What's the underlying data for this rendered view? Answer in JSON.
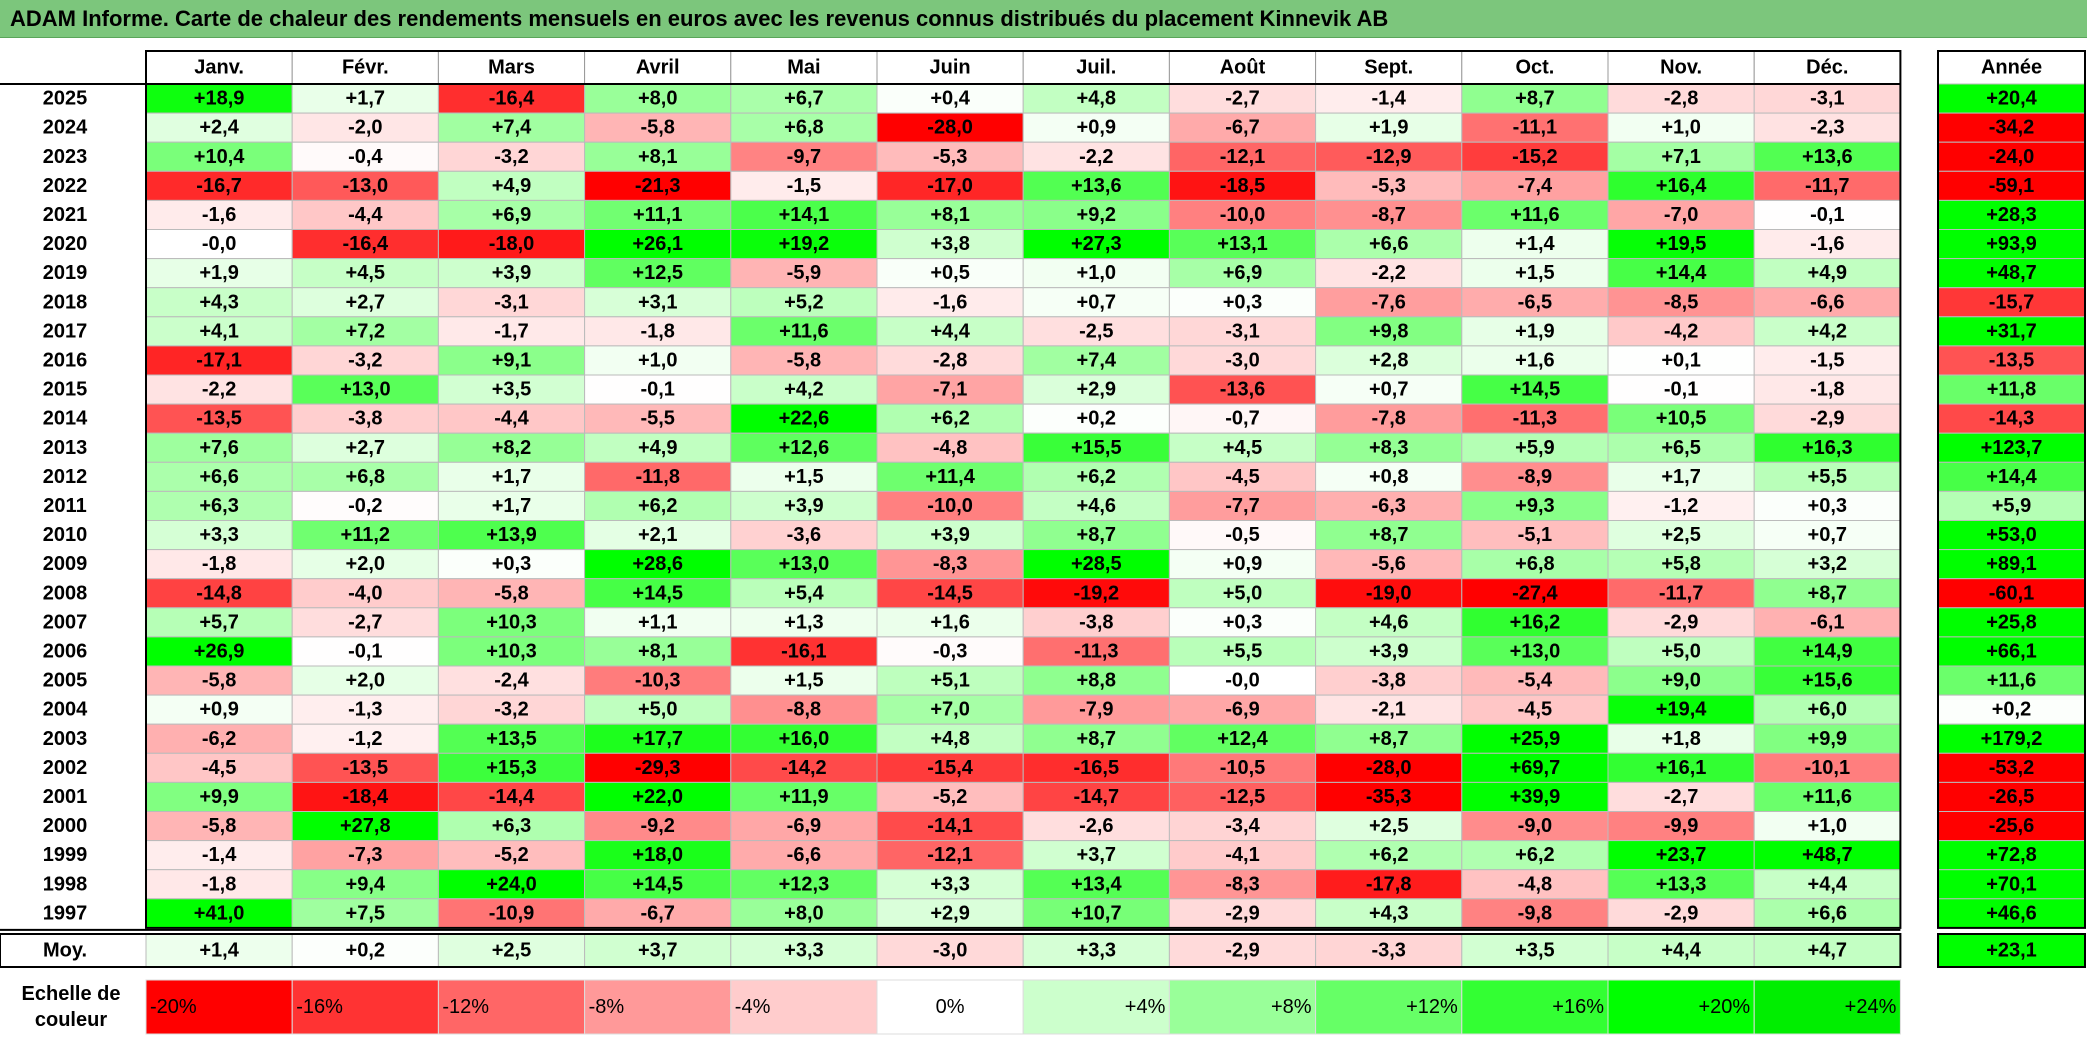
{
  "title": "ADAM Informe. Carte de chaleur des rendements mensuels en euros avec les revenus connus distribués du placement Kinnevik AB",
  "chart_data": {
    "type": "heatmap",
    "months": [
      "Janv.",
      "Févr.",
      "Mars",
      "Avril",
      "Mai",
      "Juin",
      "Juil.",
      "Août",
      "Sept.",
      "Oct.",
      "Nov.",
      "Déc."
    ],
    "year_header": "Année",
    "rows": [
      {
        "year": "2025",
        "values": [
          "+18,9",
          "+1,7",
          "-16,4",
          "+8,0",
          "+6,7",
          "+0,4",
          "+4,8",
          "-2,7",
          "-1,4",
          "+8,7",
          "-2,8",
          "-3,1"
        ],
        "annual": "+20,4"
      },
      {
        "year": "2024",
        "values": [
          "+2,4",
          "-2,0",
          "+7,4",
          "-5,8",
          "+6,8",
          "-28,0",
          "+0,9",
          "-6,7",
          "+1,9",
          "-11,1",
          "+1,0",
          "-2,3"
        ],
        "annual": "-34,2"
      },
      {
        "year": "2023",
        "values": [
          "+10,4",
          "-0,4",
          "-3,2",
          "+8,1",
          "-9,7",
          "-5,3",
          "-2,2",
          "-12,1",
          "-12,9",
          "-15,2",
          "+7,1",
          "+13,6"
        ],
        "annual": "-24,0"
      },
      {
        "year": "2022",
        "values": [
          "-16,7",
          "-13,0",
          "+4,9",
          "-21,3",
          "-1,5",
          "-17,0",
          "+13,6",
          "-18,5",
          "-5,3",
          "-7,4",
          "+16,4",
          "-11,7"
        ],
        "annual": "-59,1"
      },
      {
        "year": "2021",
        "values": [
          "-1,6",
          "-4,4",
          "+6,9",
          "+11,1",
          "+14,1",
          "+8,1",
          "+9,2",
          "-10,0",
          "-8,7",
          "+11,6",
          "-7,0",
          "-0,1"
        ],
        "annual": "+28,3"
      },
      {
        "year": "2020",
        "values": [
          "-0,0",
          "-16,4",
          "-18,0",
          "+26,1",
          "+19,2",
          "+3,8",
          "+27,3",
          "+13,1",
          "+6,6",
          "+1,4",
          "+19,5",
          "-1,6"
        ],
        "annual": "+93,9"
      },
      {
        "year": "2019",
        "values": [
          "+1,9",
          "+4,5",
          "+3,9",
          "+12,5",
          "-5,9",
          "+0,5",
          "+1,0",
          "+6,9",
          "-2,2",
          "+1,5",
          "+14,4",
          "+4,9"
        ],
        "annual": "+48,7"
      },
      {
        "year": "2018",
        "values": [
          "+4,3",
          "+2,7",
          "-3,1",
          "+3,1",
          "+5,2",
          "-1,6",
          "+0,7",
          "+0,3",
          "-7,6",
          "-6,5",
          "-8,5",
          "-6,6"
        ],
        "annual": "-15,7"
      },
      {
        "year": "2017",
        "values": [
          "+4,1",
          "+7,2",
          "-1,7",
          "-1,8",
          "+11,6",
          "+4,4",
          "-2,5",
          "-3,1",
          "+9,8",
          "+1,9",
          "-4,2",
          "+4,2"
        ],
        "annual": "+31,7"
      },
      {
        "year": "2016",
        "values": [
          "-17,1",
          "-3,2",
          "+9,1",
          "+1,0",
          "-5,8",
          "-2,8",
          "+7,4",
          "-3,0",
          "+2,8",
          "+1,6",
          "+0,1",
          "-1,5"
        ],
        "annual": "-13,5"
      },
      {
        "year": "2015",
        "values": [
          "-2,2",
          "+13,0",
          "+3,5",
          "-0,1",
          "+4,2",
          "-7,1",
          "+2,9",
          "-13,6",
          "+0,7",
          "+14,5",
          "-0,1",
          "-1,8"
        ],
        "annual": "+11,8"
      },
      {
        "year": "2014",
        "values": [
          "-13,5",
          "-3,8",
          "-4,4",
          "-5,5",
          "+22,6",
          "+6,2",
          "+0,2",
          "-0,7",
          "-7,8",
          "-11,3",
          "+10,5",
          "-2,9"
        ],
        "annual": "-14,3"
      },
      {
        "year": "2013",
        "values": [
          "+7,6",
          "+2,7",
          "+8,2",
          "+4,9",
          "+12,6",
          "-4,8",
          "+15,5",
          "+4,5",
          "+8,3",
          "+5,9",
          "+6,5",
          "+16,3"
        ],
        "annual": "+123,7"
      },
      {
        "year": "2012",
        "values": [
          "+6,6",
          "+6,8",
          "+1,7",
          "-11,8",
          "+1,5",
          "+11,4",
          "+6,2",
          "-4,5",
          "+0,8",
          "-8,9",
          "+1,7",
          "+5,5"
        ],
        "annual": "+14,4"
      },
      {
        "year": "2011",
        "values": [
          "+6,3",
          "-0,2",
          "+1,7",
          "+6,2",
          "+3,9",
          "-10,0",
          "+4,6",
          "-7,7",
          "-6,3",
          "+9,3",
          "-1,2",
          "+0,3"
        ],
        "annual": "+5,9"
      },
      {
        "year": "2010",
        "values": [
          "+3,3",
          "+11,2",
          "+13,9",
          "+2,1",
          "-3,6",
          "+3,9",
          "+8,7",
          "-0,5",
          "+8,7",
          "-5,1",
          "+2,5",
          "+0,7"
        ],
        "annual": "+53,0"
      },
      {
        "year": "2009",
        "values": [
          "-1,8",
          "+2,0",
          "+0,3",
          "+28,6",
          "+13,0",
          "-8,3",
          "+28,5",
          "+0,9",
          "-5,6",
          "+6,8",
          "+5,8",
          "+3,2"
        ],
        "annual": "+89,1"
      },
      {
        "year": "2008",
        "values": [
          "-14,8",
          "-4,0",
          "-5,8",
          "+14,5",
          "+5,4",
          "-14,5",
          "-19,2",
          "+5,0",
          "-19,0",
          "-27,4",
          "-11,7",
          "+8,7"
        ],
        "annual": "-60,1"
      },
      {
        "year": "2007",
        "values": [
          "+5,7",
          "-2,7",
          "+10,3",
          "+1,1",
          "+1,3",
          "+1,6",
          "-3,8",
          "+0,3",
          "+4,6",
          "+16,2",
          "-2,9",
          "-6,1"
        ],
        "annual": "+25,8"
      },
      {
        "year": "2006",
        "values": [
          "+26,9",
          "-0,1",
          "+10,3",
          "+8,1",
          "-16,1",
          "-0,3",
          "-11,3",
          "+5,5",
          "+3,9",
          "+13,0",
          "+5,0",
          "+14,9"
        ],
        "annual": "+66,1"
      },
      {
        "year": "2005",
        "values": [
          "-5,8",
          "+2,0",
          "-2,4",
          "-10,3",
          "+1,5",
          "+5,1",
          "+8,8",
          "-0,0",
          "-3,8",
          "-5,4",
          "+9,0",
          "+15,6"
        ],
        "annual": "+11,6"
      },
      {
        "year": "2004",
        "values": [
          "+0,9",
          "-1,3",
          "-3,2",
          "+5,0",
          "-8,8",
          "+7,0",
          "-7,9",
          "-6,9",
          "-2,1",
          "-4,5",
          "+19,4",
          "+6,0"
        ],
        "annual": "+0,2"
      },
      {
        "year": "2003",
        "values": [
          "-6,2",
          "-1,2",
          "+13,5",
          "+17,7",
          "+16,0",
          "+4,8",
          "+8,7",
          "+12,4",
          "+8,7",
          "+25,9",
          "+1,8",
          "+9,9"
        ],
        "annual": "+179,2"
      },
      {
        "year": "2002",
        "values": [
          "-4,5",
          "-13,5",
          "+15,3",
          "-29,3",
          "-14,2",
          "-15,4",
          "-16,5",
          "-10,5",
          "-28,0",
          "+69,7",
          "+16,1",
          "-10,1"
        ],
        "annual": "-53,2"
      },
      {
        "year": "2001",
        "values": [
          "+9,9",
          "-18,4",
          "-14,4",
          "+22,0",
          "+11,9",
          "-5,2",
          "-14,7",
          "-12,5",
          "-35,3",
          "+39,9",
          "-2,7",
          "+11,6"
        ],
        "annual": "-26,5"
      },
      {
        "year": "2000",
        "values": [
          "-5,8",
          "+27,8",
          "+6,3",
          "-9,2",
          "-6,9",
          "-14,1",
          "-2,6",
          "-3,4",
          "+2,5",
          "-9,0",
          "-9,9",
          "+1,0"
        ],
        "annual": "-25,6"
      },
      {
        "year": "1999",
        "values": [
          "-1,4",
          "-7,3",
          "-5,2",
          "+18,0",
          "-6,6",
          "-12,1",
          "+3,7",
          "-4,1",
          "+6,2",
          "+6,2",
          "+23,7",
          "+48,7"
        ],
        "annual": "+72,8"
      },
      {
        "year": "1998",
        "values": [
          "-1,8",
          "+9,4",
          "+24,0",
          "+14,5",
          "+12,3",
          "+3,3",
          "+13,4",
          "-8,3",
          "-17,8",
          "-4,8",
          "+13,3",
          "+4,4"
        ],
        "annual": "+70,1"
      },
      {
        "year": "1997",
        "values": [
          "+41,0",
          "+7,5",
          "-10,9",
          "-6,7",
          "+8,0",
          "+2,9",
          "+10,7",
          "-2,9",
          "+4,3",
          "-9,8",
          "-2,9",
          "+6,6"
        ],
        "annual": "+46,6"
      }
    ],
    "average": {
      "label": "Moy.",
      "values": [
        "+1,4",
        "+0,2",
        "+2,5",
        "+3,7",
        "+3,3",
        "-3,0",
        "+3,3",
        "-2,9",
        "-3,3",
        "+3,5",
        "+4,4",
        "+4,7"
      ],
      "annual": "+23,1"
    },
    "scale": {
      "label_line1": "Echelle de",
      "label_line2": "couleur",
      "stops": [
        {
          "label": "-20%",
          "value": -20,
          "color": "#ff0000"
        },
        {
          "label": "-16%",
          "value": -16,
          "color": "#ff3333"
        },
        {
          "label": "-12%",
          "value": -12,
          "color": "#ff6666"
        },
        {
          "label": "-8%",
          "value": -8,
          "color": "#ff9999"
        },
        {
          "label": "-4%",
          "value": -4,
          "color": "#ffcccc"
        },
        {
          "label": "0%",
          "value": 0,
          "color": "#ffffff"
        },
        {
          "label": "+4%",
          "value": 4,
          "color": "#ccffcc"
        },
        {
          "label": "+8%",
          "value": 8,
          "color": "#99ff99"
        },
        {
          "label": "+12%",
          "value": 12,
          "color": "#66ff66"
        },
        {
          "label": "+16%",
          "value": 16,
          "color": "#33ff33"
        },
        {
          "label": "+20%",
          "value": 20,
          "color": "#00ff00"
        },
        {
          "label": "+24%",
          "value": 24,
          "color": "#00ee00"
        }
      ]
    }
  }
}
